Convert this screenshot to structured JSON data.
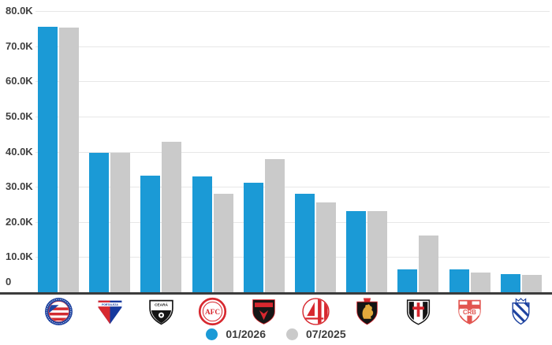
{
  "chart_data": {
    "type": "bar",
    "title": "",
    "categories": [
      "Bahia",
      "Fortaleza",
      "Ceará",
      "América-RN",
      "Vitória",
      "Náutico",
      "Sport Recife",
      "Santa Cruz",
      "CRB",
      "CSA"
    ],
    "series": [
      {
        "name": "01/2026",
        "color": "#1b9ad6",
        "values": [
          75500,
          39700,
          33100,
          32900,
          31100,
          27900,
          23000,
          6400,
          6400,
          5200
        ]
      },
      {
        "name": "07/2025",
        "color": "#cacaca",
        "values": [
          75200,
          39700,
          42900,
          28100,
          37900,
          25600,
          23000,
          16100,
          5600,
          5000
        ]
      }
    ],
    "xlabel": "",
    "ylabel": "",
    "ylim": [
      0,
      80000
    ],
    "ytick_step": 10000,
    "ytick_labels": [
      "0",
      "10.0K",
      "20.0K",
      "30.0K",
      "40.0K",
      "50.0K",
      "60.0K",
      "70.0K",
      "80.0K"
    ],
    "grid": true,
    "legend_position": "bottom",
    "x_tick_style": "club-crest-icons"
  },
  "crests": [
    {
      "club": "Bahia",
      "icon": "bahia-crest",
      "text": ""
    },
    {
      "club": "Fortaleza",
      "icon": "fortaleza-crest",
      "text": "FORTALEZA"
    },
    {
      "club": "Ceará",
      "icon": "ceara-crest",
      "text": "CEARÁ"
    },
    {
      "club": "América-RN",
      "icon": "america-rn-crest",
      "text": "AFC"
    },
    {
      "club": "Vitória",
      "icon": "vitoria-crest",
      "text": ""
    },
    {
      "club": "Náutico",
      "icon": "nautico-crest",
      "text": ""
    },
    {
      "club": "Sport Recife",
      "icon": "sport-crest",
      "text": ""
    },
    {
      "club": "Santa Cruz",
      "icon": "santa-cruz-crest",
      "text": ""
    },
    {
      "club": "CRB",
      "icon": "crb-crest",
      "text": "CRB"
    },
    {
      "club": "CSA",
      "icon": "csa-crest",
      "text": ""
    }
  ],
  "legend": {
    "items": [
      {
        "label": "01/2026",
        "color": "#1b9ad6"
      },
      {
        "label": "07/2025",
        "color": "#cacaca"
      }
    ]
  },
  "colors": {
    "background": "#ffffff",
    "bar_blue": "#1b9ad6",
    "bar_gray": "#cacaca",
    "gridline": "#e7e7e7",
    "axis_line": "#3c3c3c",
    "tick_label": "#404040",
    "legend_text": "#3c3c3c"
  }
}
